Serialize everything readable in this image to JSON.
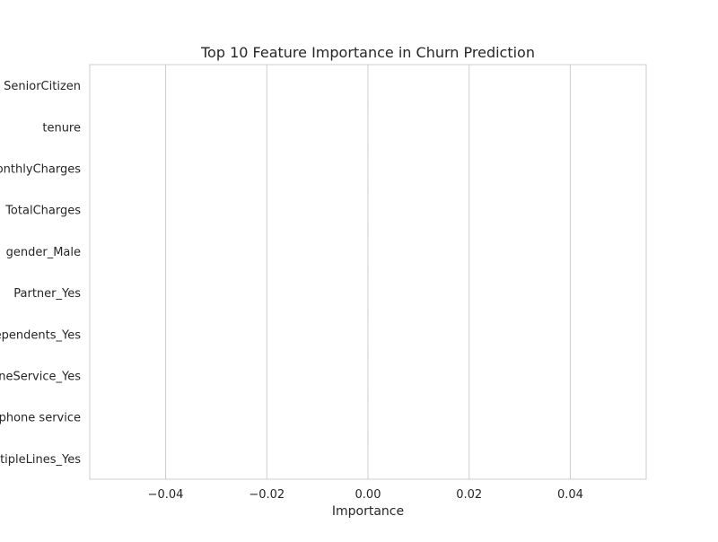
{
  "chart_data": {
    "type": "bar",
    "orientation": "horizontal",
    "title": "Top 10 Feature Importance in Churn Prediction",
    "xlabel": "Importance",
    "ylabel": "",
    "categories": [
      "SeniorCitizen",
      "tenure",
      "MonthlyCharges",
      "TotalCharges",
      "gender_Male",
      "Partner_Yes",
      "Dependents_Yes",
      "PhoneService_Yes",
      "MultipleLines_No phone service",
      "MultipleLines_Yes"
    ],
    "values": [
      0,
      0,
      0,
      0,
      0,
      0,
      0,
      0,
      0,
      0
    ],
    "xlim": [
      -0.055,
      0.055
    ],
    "xticks": [
      -0.04,
      -0.02,
      0.0,
      0.02,
      0.04
    ],
    "xtick_labels": [
      "−0.04",
      "−0.02",
      "0.00",
      "0.02",
      "0.04"
    ],
    "grid": true,
    "grid_color": "#cccccc",
    "axes_edge_color": "#cccccc"
  }
}
